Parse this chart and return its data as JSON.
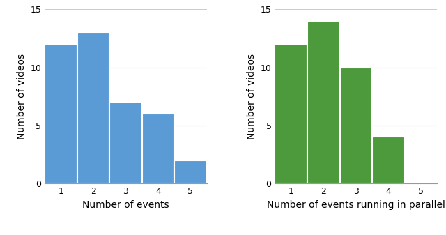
{
  "left_chart": {
    "categories": [
      1,
      2,
      3,
      4,
      5
    ],
    "values": [
      12,
      13,
      7,
      6,
      2
    ],
    "color": "#5B9BD5",
    "xlabel": "Number of events",
    "ylabel": "Number of videos",
    "ylim": [
      0,
      15
    ],
    "yticks": [
      0,
      5,
      10,
      15
    ]
  },
  "right_chart": {
    "categories": [
      1,
      2,
      3,
      4,
      5
    ],
    "values": [
      12,
      14,
      10,
      4,
      0
    ],
    "color": "#4C9A3C",
    "xlabel": "Number of events running in parallel",
    "ylabel": "Number of videos",
    "ylim": [
      0,
      15
    ],
    "yticks": [
      0,
      5,
      10,
      15
    ]
  },
  "background_color": "#ffffff",
  "grid_color": "#cccccc",
  "bar_edge_color": "#ffffff",
  "bar_linewidth": 1.5,
  "tick_fontsize": 9,
  "label_fontsize": 10
}
